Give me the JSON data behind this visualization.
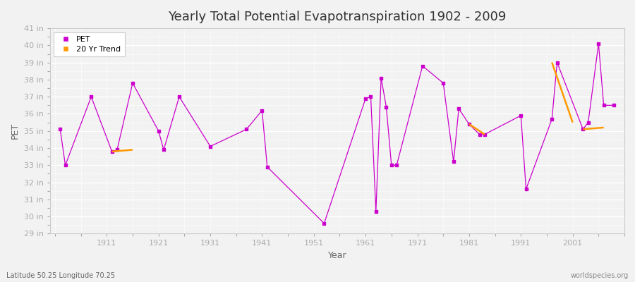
{
  "title": "Yearly Total Potential Evapotranspiration 1902 - 2009",
  "xlabel": "Year",
  "ylabel": "PET",
  "bottom_left_label": "Latitude 50.25 Longitude 70.25",
  "bottom_right_label": "worldspecies.org",
  "ylim": [
    29,
    41
  ],
  "ytick_labels": [
    "29 in",
    "30 in",
    "31 in",
    "32 in",
    "33 in",
    "34 in",
    "35 in",
    "36 in",
    "37 in",
    "38 in",
    "39 in",
    "40 in",
    "41 in"
  ],
  "ytick_values": [
    29,
    30,
    31,
    32,
    33,
    34,
    35,
    36,
    37,
    38,
    39,
    40,
    41
  ],
  "xlim": [
    1900,
    2011
  ],
  "xtick_values": [
    1911,
    1921,
    1931,
    1941,
    1951,
    1961,
    1971,
    1981,
    1991,
    2001
  ],
  "pet_color": "#cc00cc",
  "trend_color": "#ff9900",
  "bg_color": "#f0f0f0",
  "plot_bg_color": "#f0f0f0",
  "pet_data": [
    [
      1902,
      35.1
    ],
    [
      1903,
      33.0
    ],
    [
      1908,
      37.0
    ],
    [
      1912,
      33.8
    ],
    [
      1913,
      33.9
    ],
    [
      1916,
      37.8
    ],
    [
      1921,
      35.0
    ],
    [
      1922,
      33.9
    ],
    [
      1925,
      37.0
    ],
    [
      1931,
      34.1
    ],
    [
      1938,
      35.1
    ],
    [
      1941,
      36.2
    ],
    [
      1942,
      32.9
    ],
    [
      1953,
      29.6
    ],
    [
      1961,
      36.9
    ],
    [
      1962,
      37.0
    ],
    [
      1963,
      30.3
    ],
    [
      1964,
      38.1
    ],
    [
      1965,
      36.4
    ],
    [
      1966,
      33.0
    ],
    [
      1967,
      33.0
    ],
    [
      1972,
      38.8
    ],
    [
      1976,
      37.8
    ],
    [
      1978,
      33.2
    ],
    [
      1979,
      36.3
    ],
    [
      1981,
      35.4
    ],
    [
      1983,
      34.8
    ],
    [
      1984,
      34.8
    ],
    [
      1991,
      35.9
    ],
    [
      1992,
      31.6
    ],
    [
      1997,
      35.7
    ],
    [
      1998,
      39.0
    ],
    [
      2003,
      35.1
    ],
    [
      2004,
      35.5
    ],
    [
      2006,
      40.1
    ],
    [
      2007,
      36.5
    ],
    [
      2009,
      36.5
    ]
  ],
  "trend_segments": [
    [
      [
        1912,
        33.8
      ],
      [
        1916,
        33.9
      ]
    ],
    [
      [
        1981,
        35.4
      ],
      [
        1984,
        34.8
      ]
    ],
    [
      [
        1997,
        39.0
      ],
      [
        2001,
        35.5
      ]
    ],
    [
      [
        2003,
        35.1
      ],
      [
        2007,
        35.2
      ]
    ]
  ],
  "title_fontsize": 13,
  "axis_fontsize": 9,
  "tick_fontsize": 8
}
